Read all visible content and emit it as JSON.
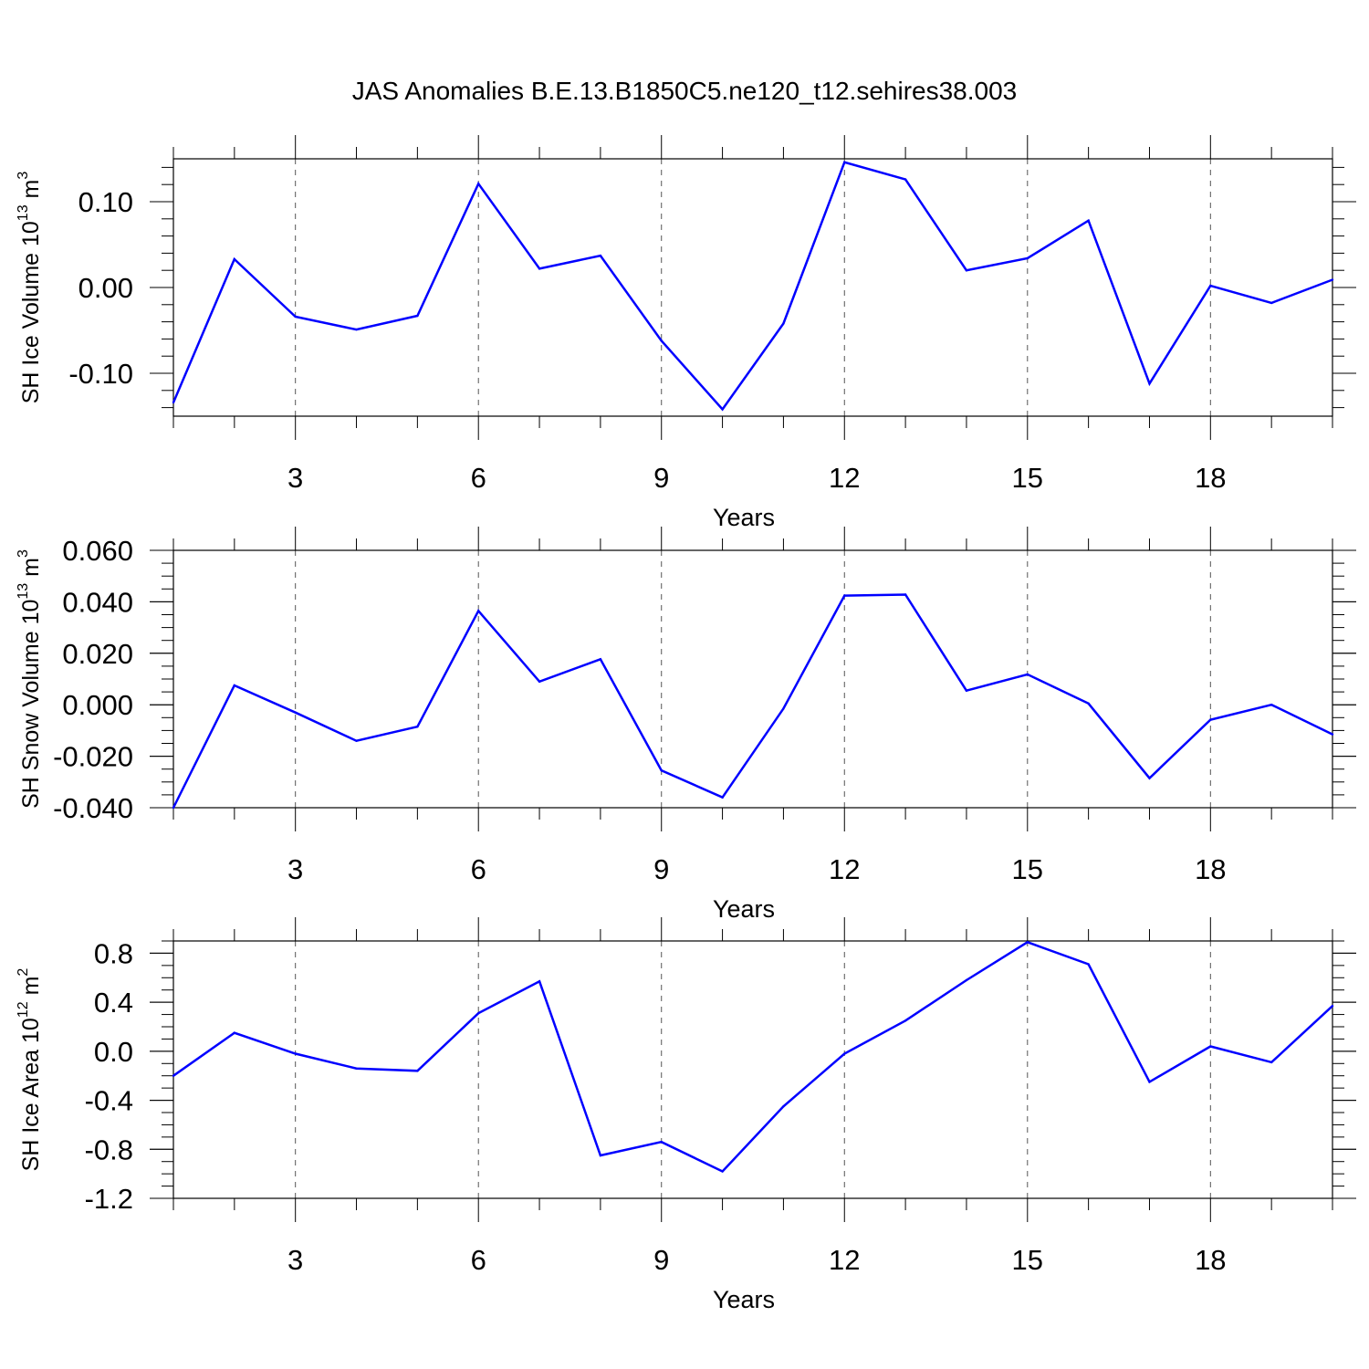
{
  "title": "JAS Anomalies B.E.13.B1850C5.ne120_t12.sehires38.003",
  "colors": {
    "line": "#0000ff",
    "axis": "#000000",
    "grid": "#555555"
  },
  "chart_data": [
    {
      "type": "line",
      "ylabel_main": "SH Ice Volume 10",
      "ylabel_exp": "13",
      "ylabel_unit": " m",
      "ylabel_unit_exp": "3",
      "xlabel": "Years",
      "xlim": [
        1,
        20
      ],
      "ylim": [
        -0.15,
        0.15
      ],
      "x_ticks": [
        3,
        6,
        9,
        12,
        15,
        18
      ],
      "x_tick_labels": [
        "3",
        "6",
        "9",
        "12",
        "15",
        "18"
      ],
      "y_ticks": [
        -0.1,
        0.0,
        0.1
      ],
      "y_tick_labels": [
        "-0.10",
        "0.00",
        "0.10"
      ],
      "y_minor_step": 0.02,
      "x": [
        1,
        2,
        3,
        4,
        5,
        6,
        7,
        8,
        9,
        10,
        11,
        12,
        13,
        14,
        15,
        16,
        17,
        18,
        19,
        20
      ],
      "series": [
        {
          "name": "SH Ice Volume",
          "values": [
            -0.134,
            0.033,
            -0.034,
            -0.049,
            -0.033,
            0.121,
            0.022,
            0.037,
            -0.062,
            -0.142,
            -0.042,
            0.146,
            0.126,
            0.02,
            0.034,
            0.078,
            -0.112,
            0.002,
            -0.018,
            0.009
          ]
        }
      ]
    },
    {
      "type": "line",
      "ylabel_main": "SH Snow Volume 10",
      "ylabel_exp": "13",
      "ylabel_unit": " m",
      "ylabel_unit_exp": "3",
      "xlabel": "Years",
      "xlim": [
        1,
        20
      ],
      "ylim": [
        -0.04,
        0.06
      ],
      "x_ticks": [
        3,
        6,
        9,
        12,
        15,
        18
      ],
      "x_tick_labels": [
        "3",
        "6",
        "9",
        "12",
        "15",
        "18"
      ],
      "y_ticks": [
        -0.04,
        -0.02,
        0.0,
        0.02,
        0.04,
        0.06
      ],
      "y_tick_labels": [
        "-0.040",
        "-0.020",
        "0.000",
        "0.020",
        "0.040",
        "0.060"
      ],
      "y_minor_step": 0.005,
      "x": [
        1,
        2,
        3,
        4,
        5,
        6,
        7,
        8,
        9,
        10,
        11,
        12,
        13,
        14,
        15,
        16,
        17,
        18,
        19,
        20
      ],
      "series": [
        {
          "name": "SH Snow Volume",
          "values": [
            -0.04,
            0.0075,
            -0.003,
            -0.014,
            -0.0085,
            0.0365,
            0.009,
            0.0177,
            -0.0255,
            -0.036,
            -0.0015,
            0.0424,
            0.0428,
            0.0055,
            0.0118,
            0.0005,
            -0.0285,
            -0.0058,
            0.0,
            -0.0115
          ]
        }
      ]
    },
    {
      "type": "line",
      "ylabel_main": "SH Ice Area 10",
      "ylabel_exp": "12",
      "ylabel_unit": " m",
      "ylabel_unit_exp": "2",
      "xlabel": "Years",
      "xlim": [
        1,
        20
      ],
      "ylim": [
        -1.2,
        0.9
      ],
      "x_ticks": [
        3,
        6,
        9,
        12,
        15,
        18
      ],
      "x_tick_labels": [
        "3",
        "6",
        "9",
        "12",
        "15",
        "18"
      ],
      "y_ticks": [
        -1.2,
        -0.8,
        -0.4,
        0.0,
        0.4,
        0.8
      ],
      "y_tick_labels": [
        "-1.2",
        "-0.8",
        "-0.4",
        "0.0",
        "0.4",
        "0.8"
      ],
      "y_minor_step": 0.1,
      "x": [
        1,
        2,
        3,
        4,
        5,
        6,
        7,
        8,
        9,
        10,
        11,
        12,
        13,
        14,
        15,
        16,
        17,
        18,
        19,
        20
      ],
      "series": [
        {
          "name": "SH Ice Area",
          "values": [
            -0.2,
            0.15,
            -0.02,
            -0.14,
            -0.16,
            0.31,
            0.57,
            -0.85,
            -0.74,
            -0.98,
            -0.45,
            -0.02,
            0.25,
            0.58,
            0.89,
            0.71,
            -0.25,
            0.04,
            -0.09,
            0.37
          ]
        }
      ]
    }
  ]
}
